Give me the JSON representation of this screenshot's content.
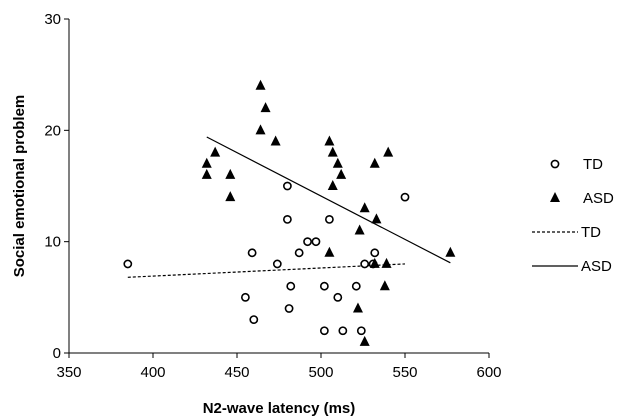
{
  "chart_data": {
    "type": "scatter",
    "xlabel": "N2-wave latency (ms)",
    "ylabel": "Social emotional problem",
    "xlim": [
      350,
      600
    ],
    "ylim": [
      0,
      30
    ],
    "xticks": [
      350,
      400,
      450,
      500,
      550,
      600
    ],
    "yticks": [
      0,
      10,
      20,
      30
    ],
    "grid": false,
    "legend_position": "right",
    "series": [
      {
        "name": "TD",
        "marker": "open-circle",
        "points": [
          [
            385,
            8
          ],
          [
            455,
            5
          ],
          [
            459,
            9
          ],
          [
            460,
            3
          ],
          [
            474,
            8
          ],
          [
            480,
            12
          ],
          [
            480,
            15
          ],
          [
            481,
            4
          ],
          [
            482,
            6
          ],
          [
            487,
            9
          ],
          [
            492,
            10
          ],
          [
            497,
            10
          ],
          [
            502,
            6
          ],
          [
            502,
            2
          ],
          [
            505,
            12
          ],
          [
            510,
            5
          ],
          [
            513,
            2
          ],
          [
            521,
            6
          ],
          [
            524,
            2
          ],
          [
            526,
            8
          ],
          [
            531,
            8
          ],
          [
            532,
            9
          ],
          [
            550,
            14
          ]
        ]
      },
      {
        "name": "ASD",
        "marker": "filled-triangle",
        "points": [
          [
            432,
            17
          ],
          [
            432,
            16
          ],
          [
            437,
            18
          ],
          [
            446,
            16
          ],
          [
            446,
            14
          ],
          [
            464,
            24
          ],
          [
            464,
            20
          ],
          [
            467,
            22
          ],
          [
            473,
            19
          ],
          [
            505,
            19
          ],
          [
            505,
            9
          ],
          [
            507,
            15
          ],
          [
            507,
            18
          ],
          [
            510,
            17
          ],
          [
            512,
            16
          ],
          [
            522,
            4
          ],
          [
            523,
            11
          ],
          [
            526,
            13
          ],
          [
            526,
            1
          ],
          [
            532,
            8
          ],
          [
            532,
            17
          ],
          [
            533,
            12
          ],
          [
            538,
            6
          ],
          [
            539,
            8
          ],
          [
            540,
            18
          ],
          [
            577,
            9
          ]
        ]
      }
    ],
    "trendlines": [
      {
        "name": "TD",
        "style": "dashed",
        "x": [
          385,
          550
        ],
        "y": [
          6.8,
          8.0
        ]
      },
      {
        "name": "ASD",
        "style": "solid",
        "x": [
          432,
          577
        ],
        "y": [
          19.4,
          8.1
        ]
      }
    ],
    "colors": {
      "markers": "#000000",
      "lines": "#000000"
    }
  }
}
